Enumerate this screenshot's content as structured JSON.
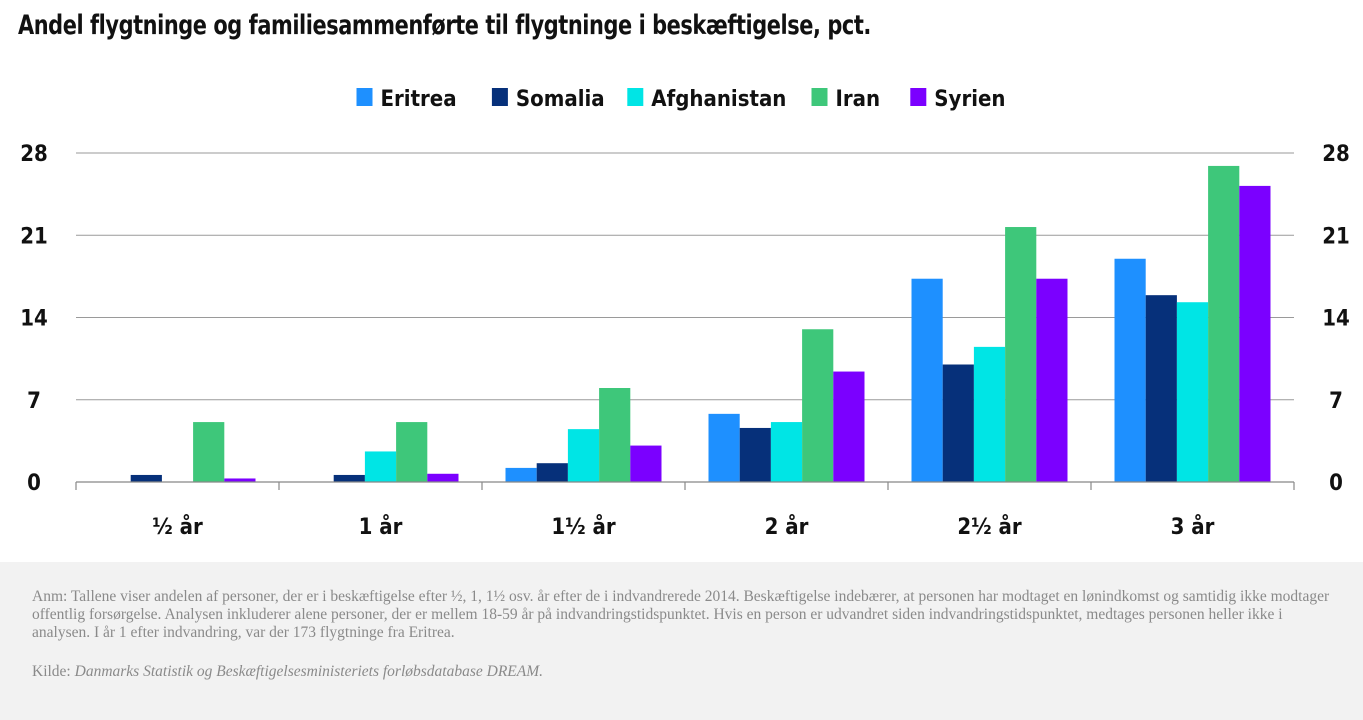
{
  "title": "Andel flygtninge og familiesammenførte til flygtninge i beskæftigelse, pct.",
  "note": "Anm: Tallene viser andelen af personer, der er i beskæftigelse efter ½, 1, 1½ osv. år efter de i indvandrerede 2014. Beskæftigelse indebærer, at personen har modtaget en lønindkomst og samtidig ikke modtager offentlig forsørgelse. Analysen inkluderer alene personer, der er mellem 18-59 år på indvandringstidspunktet. Hvis en person er udvandret siden indvandringstidspunktet, medtages personen heller ikke i analysen. I år 1 efter indvandring, var der 173 flygtninge fra Eritrea.",
  "source_label": "Kilde:",
  "source_text": "Danmarks Statistik og Beskæftigelsesministeriets forløbsdatabase DREAM.",
  "chart_data": {
    "type": "bar",
    "categories": [
      "½ år",
      "1 år",
      "1½ år",
      "2 år",
      "2½ år",
      "3 år"
    ],
    "series": [
      {
        "name": "Eritrea",
        "color": "#1e90ff",
        "values": [
          0,
          0,
          1.2,
          5.8,
          17.3,
          19.0
        ]
      },
      {
        "name": "Somalia",
        "color": "#06307a",
        "values": [
          0.6,
          0.6,
          1.6,
          4.6,
          10.0,
          15.9
        ]
      },
      {
        "name": "Afghanistan",
        "color": "#00e5e5",
        "values": [
          0,
          2.6,
          4.5,
          5.1,
          11.5,
          15.3
        ]
      },
      {
        "name": "Iran",
        "color": "#3ec77a",
        "values": [
          5.1,
          5.1,
          8.0,
          13.0,
          21.7,
          26.9
        ]
      },
      {
        "name": "Syrien",
        "color": "#7b00ff",
        "values": [
          0.3,
          0.7,
          3.1,
          9.4,
          17.3,
          25.2
        ]
      }
    ],
    "ylim": [
      0,
      28
    ],
    "yticks": [
      0,
      7,
      14,
      21,
      28
    ],
    "grid": true,
    "legend_position": "top-center",
    "axis_color": "#888888"
  }
}
